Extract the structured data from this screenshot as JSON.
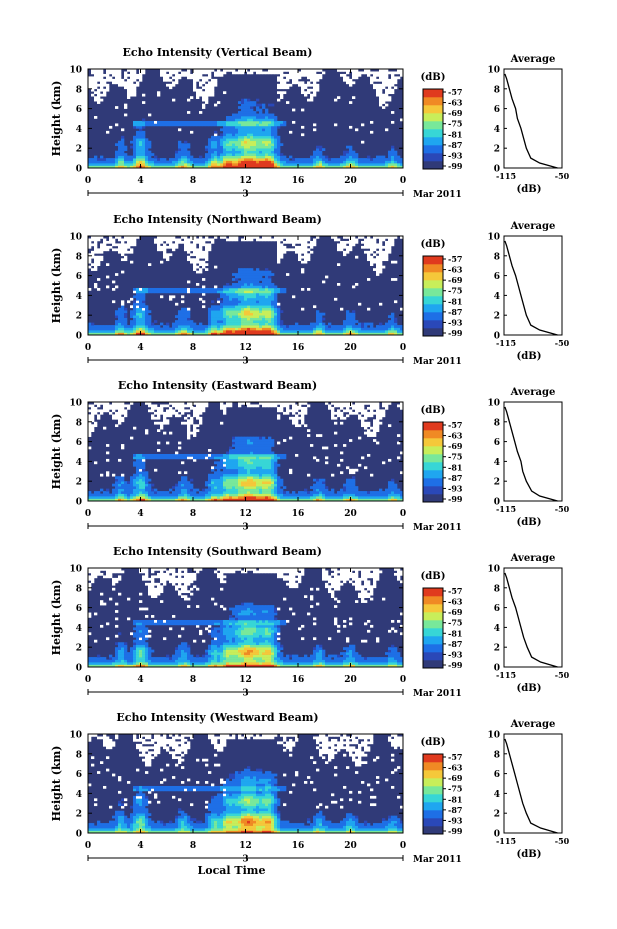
{
  "figure": {
    "colorbar_unit": "(dB)",
    "colorbar_ticks": [
      "-57",
      "-63",
      "-69",
      "-75",
      "-81",
      "-87",
      "-93",
      "-99"
    ],
    "time_ticks": [
      "0",
      "4",
      "8",
      "12",
      "16",
      "20",
      "0"
    ],
    "height_ticks": [
      "0",
      "2",
      "4",
      "6",
      "8",
      "10"
    ],
    "date_label": "3",
    "month_label": "Mar 2011",
    "xlabel": "Local Time",
    "ylabel": "Height (km)",
    "profile_title": "Average",
    "profile_xlabel": "(dB)",
    "profile_xticks": [
      "-115",
      "-50"
    ],
    "colors": {
      "background_low": "#303a78",
      "colormap": [
        "#303a78",
        "#2a48b8",
        "#1e6fe6",
        "#1fa6f0",
        "#37d6d6",
        "#78e89a",
        "#c8ee5a",
        "#f5c83a",
        "#f08a24",
        "#e03a1e"
      ]
    }
  },
  "chart_data": [
    {
      "type": "heatmap",
      "title": "Echo Intensity (Vertical Beam)",
      "xlabel": "",
      "ylabel": "Height (km)",
      "xlim": [
        0,
        24
      ],
      "ylim": [
        0,
        10
      ],
      "colorbar_range_db": [
        -99,
        -57
      ],
      "average_profile": {
        "title": "Average",
        "xlabel": "(dB)",
        "xlim": [
          -115,
          -50
        ],
        "height_km": [
          0,
          0.5,
          1,
          2,
          3,
          4,
          5,
          6,
          7,
          8,
          9,
          9.5
        ],
        "echo_db": [
          -55,
          -75,
          -85,
          -90,
          -93,
          -96,
          -100,
          -102,
          -106,
          -109,
          -112,
          -114
        ]
      }
    },
    {
      "type": "heatmap",
      "title": "Echo Intensity (Northward Beam)",
      "xlabel": "",
      "ylabel": "Height (km)",
      "xlim": [
        0,
        24
      ],
      "ylim": [
        0,
        10
      ],
      "colorbar_range_db": [
        -99,
        -57
      ],
      "average_profile": {
        "title": "Average",
        "xlabel": "(dB)",
        "xlim": [
          -115,
          -50
        ],
        "height_km": [
          0,
          0.5,
          1,
          2,
          3,
          4,
          5,
          6,
          7,
          8,
          9,
          9.5
        ],
        "echo_db": [
          -55,
          -75,
          -85,
          -90,
          -93,
          -96,
          -99,
          -102,
          -106,
          -109,
          -112,
          -114
        ]
      }
    },
    {
      "type": "heatmap",
      "title": "Echo Intensity (Eastward Beam)",
      "xlabel": "",
      "ylabel": "Height (km)",
      "xlim": [
        0,
        24
      ],
      "ylim": [
        0,
        10
      ],
      "colorbar_range_db": [
        -99,
        -57
      ],
      "average_profile": {
        "title": "Average",
        "xlabel": "(dB)",
        "xlim": [
          -115,
          -50
        ],
        "height_km": [
          0,
          0.5,
          1,
          2,
          3,
          4,
          5,
          6,
          7,
          8,
          9,
          9.5
        ],
        "echo_db": [
          -55,
          -75,
          -84,
          -90,
          -94,
          -96,
          -100,
          -103,
          -106,
          -109,
          -112,
          -114
        ]
      }
    },
    {
      "type": "heatmap",
      "title": "Echo Intensity (Southward Beam)",
      "xlabel": "",
      "ylabel": "Height (km)",
      "xlim": [
        0,
        24
      ],
      "ylim": [
        0,
        10
      ],
      "colorbar_range_db": [
        -99,
        -57
      ],
      "average_profile": {
        "title": "Average",
        "xlabel": "(dB)",
        "xlim": [
          -115,
          -50
        ],
        "height_km": [
          0,
          0.5,
          1,
          2,
          3,
          4,
          5,
          6,
          7,
          8,
          9,
          9.5
        ],
        "echo_db": [
          -55,
          -74,
          -84,
          -89,
          -93,
          -96,
          -99,
          -102,
          -106,
          -109,
          -112,
          -114
        ]
      }
    },
    {
      "type": "heatmap",
      "title": "Echo Intensity (Westward Beam)",
      "xlabel": "Local Time",
      "ylabel": "Height (km)",
      "xlim": [
        0,
        24
      ],
      "ylim": [
        0,
        10
      ],
      "colorbar_range_db": [
        -99,
        -57
      ],
      "average_profile": {
        "title": "Average",
        "xlabel": "(dB)",
        "xlim": [
          -115,
          -50
        ],
        "height_km": [
          0,
          0.5,
          1,
          2,
          3,
          4,
          5,
          6,
          7,
          8,
          9,
          9.5
        ],
        "echo_db": [
          -55,
          -74,
          -85,
          -90,
          -94,
          -97,
          -100,
          -103,
          -106,
          -109,
          -112,
          -114
        ]
      }
    }
  ]
}
